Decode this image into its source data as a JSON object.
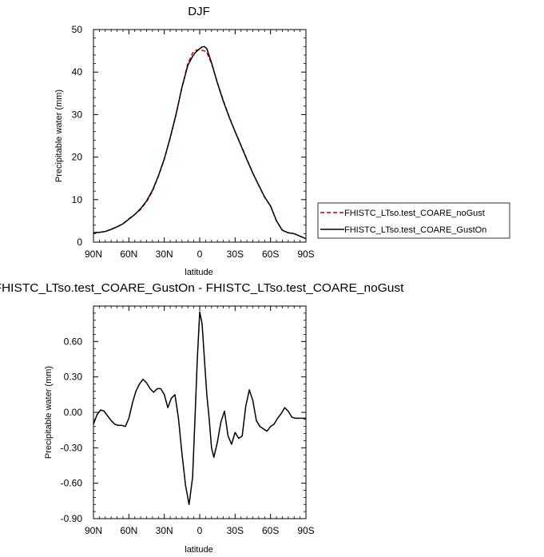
{
  "chart_data": [
    {
      "type": "line",
      "title": "DJF",
      "xlabel": "latitude",
      "ylabel": "Precipitable water (mm)",
      "xlim": [
        90,
        -90
      ],
      "ylim": [
        0,
        50
      ],
      "xticks": [
        90,
        60,
        30,
        0,
        -30,
        -60,
        -90
      ],
      "xtick_labels": [
        "90N",
        "60N",
        "30N",
        "0",
        "30S",
        "60S",
        "90S"
      ],
      "yticks": [
        0,
        10,
        20,
        30,
        40,
        50
      ],
      "ytick_labels": [
        "0",
        "10",
        "20",
        "30",
        "40",
        "50"
      ],
      "grid": false,
      "legend_position": "right",
      "series": [
        {
          "name": "FHISTC_LTso.test_COARE_noGust",
          "color": "#cc0000",
          "dash": true,
          "x": [
            90,
            85,
            80,
            75,
            70,
            65,
            60,
            55,
            50,
            45,
            40,
            35,
            30,
            25,
            20,
            15,
            10,
            6,
            4,
            2,
            0,
            -2,
            -4,
            -6,
            -10,
            -15,
            -20,
            -25,
            -30,
            -35,
            -40,
            -45,
            -50,
            -55,
            -60,
            -65,
            -70,
            -75,
            -80,
            -85,
            -90
          ],
          "y": [
            2.2,
            2.3,
            2.5,
            3.0,
            3.6,
            4.3,
            5.5,
            6.5,
            7.7,
            9.5,
            12.0,
            15.5,
            19.5,
            24.5,
            30.0,
            36.5,
            42.0,
            44.5,
            45.1,
            45.2,
            45.2,
            45.1,
            45.0,
            44.6,
            42.0,
            37.5,
            33.3,
            29.5,
            26.0,
            22.8,
            19.5,
            16.3,
            13.3,
            10.5,
            8.5,
            5.0,
            2.8,
            2.2,
            2.0,
            1.4,
            0.8
          ]
        },
        {
          "name": "FHISTC_LTso.test_COARE_GustOn",
          "color": "#000000",
          "dash": false,
          "x": [
            90,
            85,
            80,
            75,
            70,
            65,
            60,
            55,
            50,
            45,
            40,
            35,
            30,
            25,
            20,
            15,
            10,
            6,
            4,
            2,
            0,
            -2,
            -4,
            -6,
            -10,
            -15,
            -20,
            -25,
            -30,
            -35,
            -40,
            -45,
            -50,
            -55,
            -60,
            -65,
            -70,
            -75,
            -80,
            -85,
            -90
          ],
          "y": [
            2.2,
            2.3,
            2.5,
            3.0,
            3.6,
            4.3,
            5.4,
            6.5,
            7.9,
            9.7,
            12.2,
            15.6,
            19.6,
            24.6,
            30.1,
            36.4,
            41.6,
            43.7,
            44.5,
            45.0,
            45.5,
            45.9,
            46.0,
            45.5,
            42.2,
            37.4,
            33.1,
            29.4,
            26.0,
            22.7,
            19.4,
            16.2,
            13.4,
            10.6,
            8.5,
            5.0,
            2.8,
            2.2,
            2.0,
            1.4,
            0.8
          ]
        }
      ]
    },
    {
      "type": "line",
      "title": "FHISTC_LTso.test_COARE_GustOn - FHISTC_LTso.test_COARE_noGust",
      "xlabel": "latitude",
      "ylabel": "Precipitable water (mm)",
      "xlim": [
        90,
        -90
      ],
      "ylim": [
        -0.9,
        0.9
      ],
      "xticks": [
        90,
        60,
        30,
        0,
        -30,
        -60,
        -90
      ],
      "xtick_labels": [
        "90N",
        "60N",
        "30N",
        "0",
        "30S",
        "60S",
        "90S"
      ],
      "yticks": [
        -0.9,
        -0.6,
        -0.3,
        0.0,
        0.3,
        0.6
      ],
      "ytick_labels": [
        "-0.90",
        "-0.60",
        "-0.30",
        "0.00",
        "0.30",
        "0.60"
      ],
      "grid": false,
      "series": [
        {
          "color": "#000000",
          "x": [
            90,
            87,
            84,
            81,
            78,
            75,
            72,
            69,
            66,
            63,
            60,
            57,
            54,
            51,
            48,
            45,
            42,
            39,
            36,
            33,
            30,
            27,
            24,
            21,
            18,
            15,
            12,
            9,
            6,
            4,
            2,
            0,
            -2,
            -4,
            -6,
            -8,
            -10,
            -12,
            -15,
            -18,
            -21,
            -24,
            -27,
            -30,
            -33,
            -36,
            -39,
            -42,
            -45,
            -48,
            -51,
            -54,
            -57,
            -60,
            -63,
            -66,
            -69,
            -72,
            -75,
            -78,
            -81,
            -84,
            -87,
            -90
          ],
          "y": [
            -0.1,
            -0.02,
            0.02,
            0.01,
            -0.03,
            -0.07,
            -0.1,
            -0.11,
            -0.11,
            -0.12,
            -0.05,
            0.08,
            0.18,
            0.24,
            0.28,
            0.25,
            0.2,
            0.17,
            0.2,
            0.2,
            0.15,
            0.04,
            0.12,
            0.15,
            -0.05,
            -0.35,
            -0.62,
            -0.78,
            -0.55,
            -0.05,
            0.45,
            0.85,
            0.75,
            0.45,
            0.15,
            -0.05,
            -0.3,
            -0.38,
            -0.25,
            -0.08,
            0.01,
            -0.2,
            -0.27,
            -0.17,
            -0.22,
            -0.2,
            0.05,
            0.19,
            0.1,
            -0.07,
            -0.12,
            -0.14,
            -0.16,
            -0.12,
            -0.1,
            -0.05,
            -0.01,
            0.04,
            0.01,
            -0.04,
            -0.05,
            -0.05,
            -0.05,
            -0.05
          ]
        }
      ]
    }
  ]
}
